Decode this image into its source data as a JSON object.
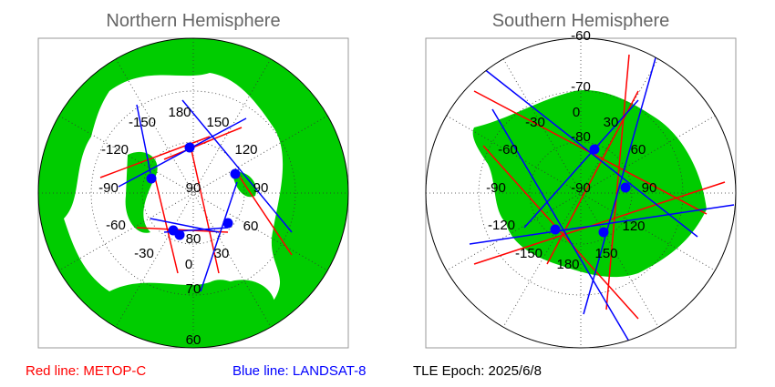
{
  "maps": [
    {
      "title": "Northern Hemisphere",
      "labels": [
        "180",
        "150",
        "120",
        "90",
        "60",
        "30",
        "0",
        "-30",
        "-60",
        "-90",
        "-120",
        "-150",
        "90",
        "80",
        "70",
        "60"
      ]
    },
    {
      "title": "Southern Hemisphere",
      "labels": [
        "-60",
        "-70",
        "-80",
        "-90",
        "0",
        "30",
        "60",
        "90",
        "120",
        "150",
        "180",
        "-150",
        "-120",
        "-90",
        "-60",
        "-30"
      ]
    }
  ],
  "legend": {
    "red": "Red line: METOP-C",
    "blue": "Blue line: LANDSAT-8",
    "epoch": "TLE Epoch: 2025/6/8"
  }
}
